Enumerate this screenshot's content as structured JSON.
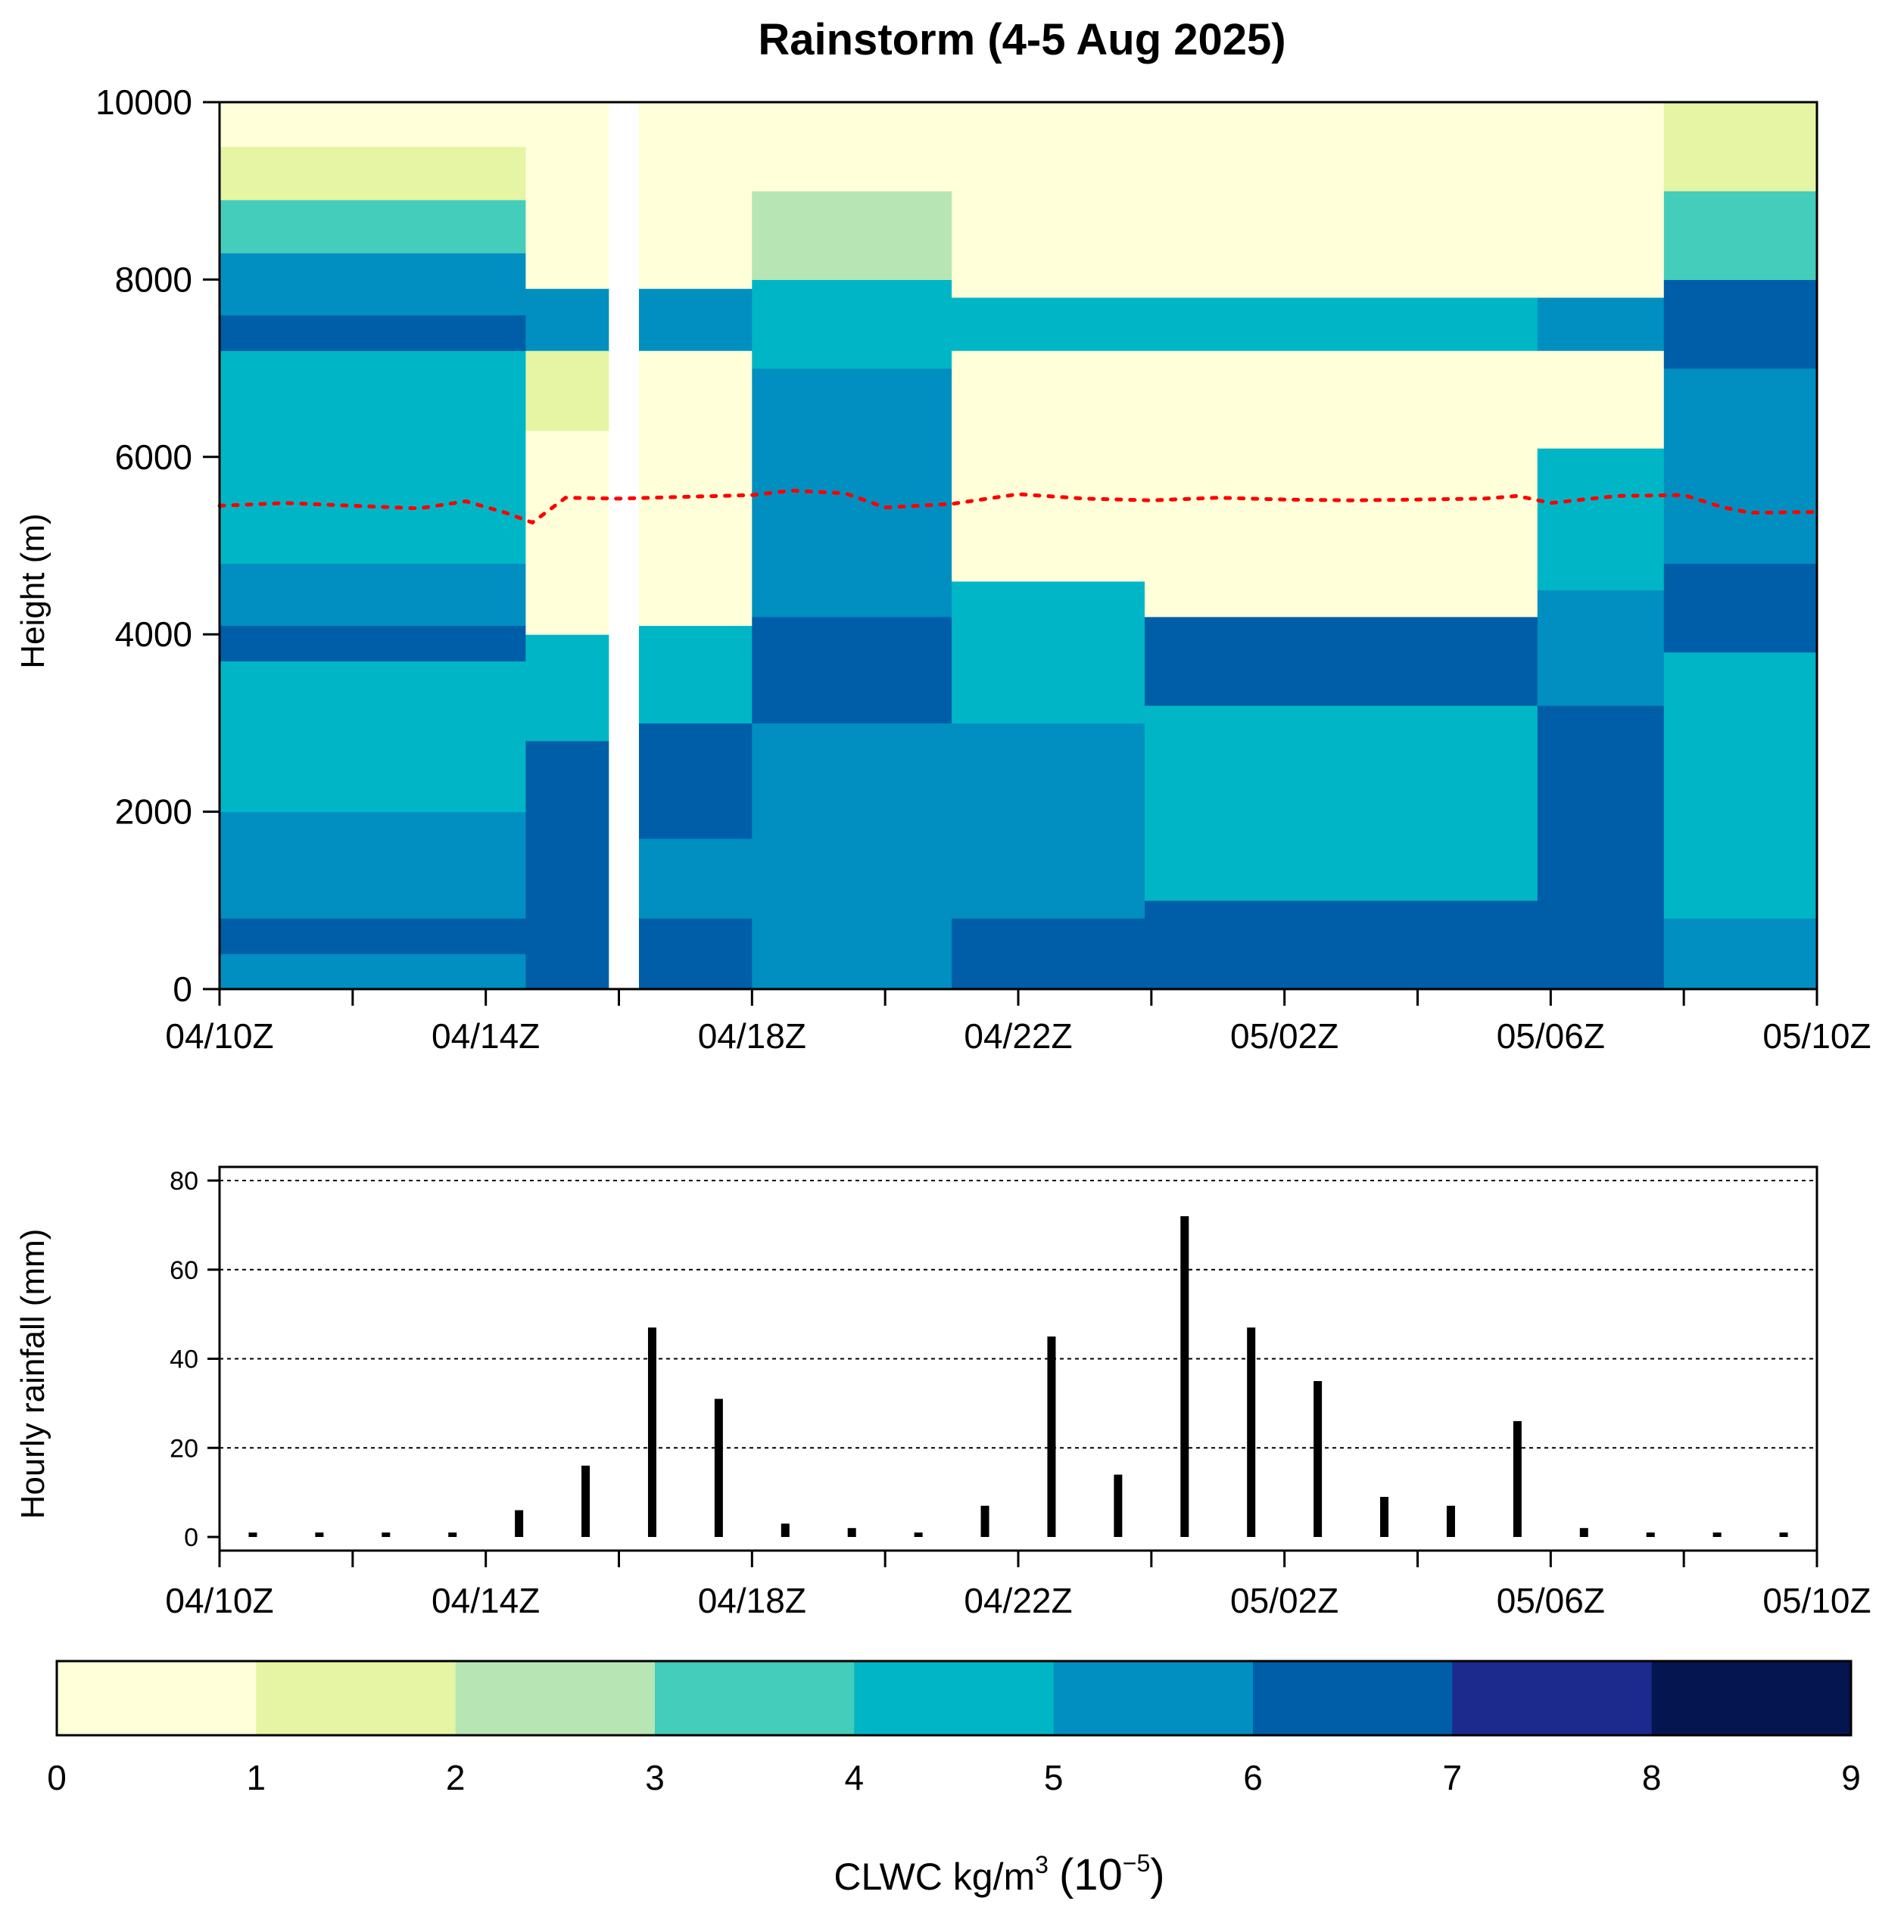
{
  "chart_data": [
    {
      "type": "heatmap",
      "title": "Rainstorm (4-5 Aug 2025)",
      "xlabel": "",
      "ylabel": "Height (m)",
      "ylim": [
        0,
        10000
      ],
      "yticks": [
        0,
        2000,
        4000,
        6000,
        8000,
        10000
      ],
      "xticklabels": [
        "04/10Z",
        "04/14Z",
        "04/18Z",
        "04/22Z",
        "05/02Z",
        "05/06Z",
        "05/10Z"
      ],
      "xlim_hours": [
        0,
        24
      ],
      "missing_band_hours": [
        5.85,
        6.3
      ],
      "freezing_level": {
        "color": "#ff0000",
        "hours": [
          0,
          1,
          2,
          3,
          3.7,
          4.3,
          4.7,
          5.2,
          6,
          7,
          8,
          8.6,
          9.4,
          10,
          11,
          12,
          13,
          14,
          15,
          16,
          17,
          18,
          19,
          19.5,
          20,
          21,
          22,
          22.6,
          23,
          24
        ],
        "height": [
          5450,
          5480,
          5450,
          5420,
          5500,
          5370,
          5260,
          5540,
          5530,
          5550,
          5570,
          5620,
          5590,
          5430,
          5470,
          5580,
          5530,
          5510,
          5540,
          5520,
          5510,
          5520,
          5530,
          5560,
          5480,
          5560,
          5570,
          5430,
          5370,
          5380
        ]
      },
      "profile_segments": [
        {
          "hours": [
            0,
            4.6
          ],
          "base_hours": [
            0,
            4.6
          ],
          "layers": [
            [
              0,
              400,
              5
            ],
            [
              400,
              800,
              6
            ],
            [
              800,
              2000,
              5
            ],
            [
              2000,
              3700,
              4
            ],
            [
              3700,
              4100,
              6
            ],
            [
              4100,
              4800,
              5
            ],
            [
              4800,
              7200,
              4
            ],
            [
              7200,
              7600,
              6
            ],
            [
              7600,
              8300,
              5
            ],
            [
              8300,
              8900,
              3
            ],
            [
              8900,
              9500,
              1
            ],
            [
              9500,
              10000,
              0
            ]
          ]
        },
        {
          "hours": [
            4.6,
            5.85
          ],
          "layers": [
            [
              0,
              2800,
              6
            ],
            [
              2800,
              4000,
              4
            ],
            [
              4000,
              6300,
              0
            ],
            [
              6300,
              7200,
              1
            ],
            [
              7200,
              7900,
              5
            ],
            [
              7900,
              10000,
              0
            ]
          ]
        },
        {
          "hours": [
            6.3,
            8.0
          ],
          "layers": [
            [
              0,
              800,
              6
            ],
            [
              800,
              1700,
              5
            ],
            [
              1700,
              3000,
              6
            ],
            [
              3000,
              4100,
              4
            ],
            [
              4100,
              7200,
              0
            ],
            [
              7200,
              7900,
              5
            ],
            [
              7900,
              10000,
              0
            ]
          ]
        },
        {
          "hours": [
            8.0,
            11.0
          ],
          "layers": [
            [
              0,
              3000,
              5
            ],
            [
              3000,
              4200,
              6
            ],
            [
              4200,
              7000,
              5
            ],
            [
              7000,
              8000,
              4
            ],
            [
              8000,
              9000,
              2
            ],
            [
              9000,
              10000,
              0
            ]
          ]
        },
        {
          "hours": [
            11.0,
            13.9
          ],
          "layers": [
            [
              0,
              800,
              6
            ],
            [
              800,
              3000,
              5
            ],
            [
              3000,
              4600,
              4
            ],
            [
              4600,
              7200,
              0
            ],
            [
              7200,
              7800,
              4
            ],
            [
              7800,
              10000,
              0
            ]
          ]
        },
        {
          "hours": [
            13.9,
            19.8
          ],
          "layers": [
            [
              0,
              1000,
              6
            ],
            [
              1000,
              3200,
              4
            ],
            [
              3200,
              4200,
              6
            ],
            [
              4200,
              7200,
              0
            ],
            [
              7200,
              7800,
              4
            ],
            [
              7800,
              10000,
              0
            ]
          ]
        },
        {
          "hours": [
            19.8,
            21.7
          ],
          "layers": [
            [
              0,
              3200,
              6
            ],
            [
              3200,
              4500,
              5
            ],
            [
              4500,
              6100,
              4
            ],
            [
              6100,
              7200,
              0
            ],
            [
              7200,
              7800,
              5
            ],
            [
              7800,
              10000,
              0
            ]
          ]
        },
        {
          "hours": [
            21.7,
            24
          ],
          "layers": [
            [
              0,
              800,
              5
            ],
            [
              800,
              3800,
              4
            ],
            [
              3800,
              4800,
              6
            ],
            [
              4800,
              7000,
              5
            ],
            [
              7000,
              8000,
              6
            ],
            [
              8000,
              9000,
              3
            ],
            [
              9000,
              10000,
              1
            ]
          ]
        }
      ],
      "colorbar": {
        "label": "CLWC kg/m",
        "label_sup": "3",
        "label_scale": "(10",
        "label_scale_sup": "−5",
        "label_scale_close": ")",
        "levels": [
          0,
          1,
          2,
          3,
          4,
          5,
          6,
          7,
          8,
          9
        ],
        "colors": [
          "#ffffd9",
          "#edf8b1",
          "#c7e9b4",
          "#7fcdbb",
          "#41b6c4",
          "#1d91c0",
          "#225ea8",
          "#253494",
          "#081d58"
        ],
        "display_colors": [
          "#ffffd9",
          "#e5f5a3",
          "#b7e6b4",
          "#44cdbb",
          "#00b6c6",
          "#008fc0",
          "#005ea8",
          "#1c2a8e",
          "#04154f"
        ]
      }
    },
    {
      "type": "bar",
      "ylabel": "Hourly rainfall (mm)",
      "xlabel": "",
      "ylim": [
        0,
        80
      ],
      "yticks": [
        0,
        20,
        40,
        60,
        80
      ],
      "grid": "horizontal dotted at 20, 40, 60, 80",
      "xticklabels": [
        "04/10Z",
        "04/14Z",
        "04/18Z",
        "04/22Z",
        "05/02Z",
        "05/06Z",
        "05/10Z"
      ],
      "hours": [
        0.5,
        1.5,
        2.5,
        3.5,
        4.5,
        5.5,
        6.5,
        7.5,
        8.5,
        9.5,
        10.5,
        11.5,
        12.5,
        13.5,
        14.5,
        15.5,
        16.5,
        17.5,
        18.5,
        19.5,
        20.5,
        21.5,
        22.5,
        23.5
      ],
      "values": [
        1,
        1,
        1,
        1,
        6,
        16,
        47,
        31,
        3,
        2,
        1,
        7,
        45,
        14,
        72,
        47,
        35,
        9,
        7,
        26,
        2,
        1,
        1,
        1
      ]
    }
  ]
}
